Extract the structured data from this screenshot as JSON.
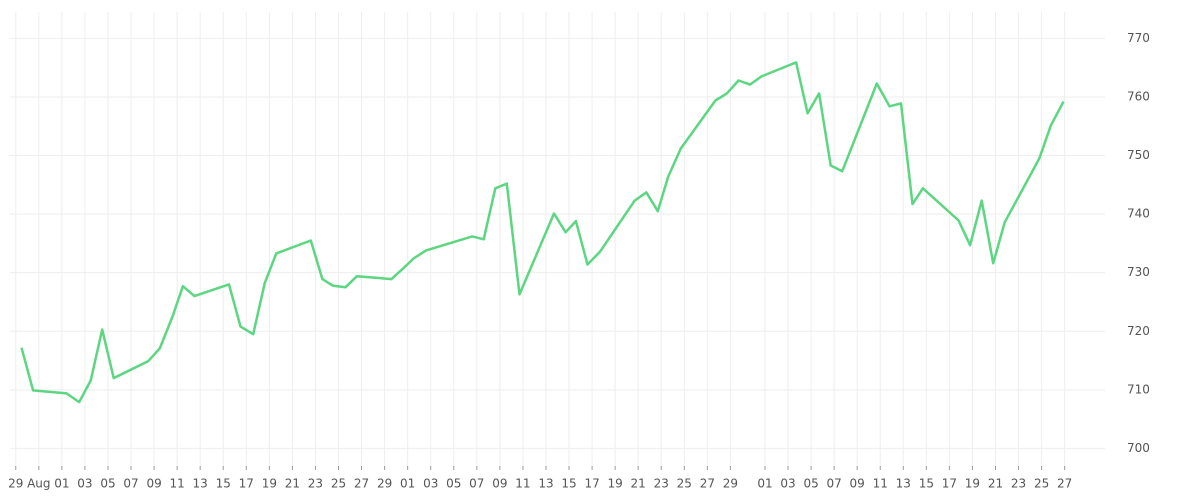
{
  "chart_data": {
    "type": "line",
    "x": [
      0.5,
      1.5,
      4.4,
      5.5,
      6.5,
      7.5,
      8.5,
      11.5,
      12.5,
      13.6,
      14.5,
      15.5,
      18.5,
      19.5,
      20.6,
      21.6,
      22.6,
      25.6,
      26.6,
      27.5,
      28.6,
      29.6,
      32.6,
      33.6,
      34.5,
      35.6,
      39.6,
      40.6,
      41.6,
      42.6,
      43.7,
      46.7,
      47.7,
      48.6,
      49.6,
      50.7,
      53.7,
      54.7,
      55.7,
      56.6,
      57.7,
      60.7,
      61.7,
      62.7,
      63.7,
      64.7,
      67.7,
      68.7,
      69.7,
      70.7,
      71.7,
      74.7,
      75.8,
      76.8,
      77.8,
      78.7,
      81.8,
      82.8,
      83.8,
      84.8,
      85.8,
      88.8,
      89.8,
      90.9
    ],
    "series": [
      {
        "color": "#5cd680",
        "values": [
          717.2,
          709.9,
          709.4,
          707.9,
          711.6,
          720.3,
          712.0,
          714.9,
          717.1,
          722.5,
          727.7,
          726.0,
          728.0,
          720.8,
          719.5,
          728.2,
          733.3,
          735.5,
          728.9,
          727.8,
          727.5,
          729.4,
          728.9,
          730.7,
          732.4,
          733.8,
          736.2,
          735.7,
          744.4,
          745.2,
          726.3,
          740.1,
          736.9,
          738.8,
          731.4,
          733.6,
          742.3,
          743.7,
          740.5,
          746.4,
          751.2,
          759.4,
          760.6,
          762.8,
          762.1,
          763.5,
          765.9,
          757.2,
          760.6,
          748.3,
          747.3,
          762.3,
          758.4,
          758.9,
          741.7,
          744.4,
          738.9,
          734.7,
          742.3,
          731.6,
          738.6,
          749.5,
          755.1,
          759.2
        ]
      }
    ],
    "xlim": [
      -0.5,
      94.5
    ],
    "xticks": [
      {
        "value": 0,
        "label": "29"
      },
      {
        "value": 2,
        "label": "Aug"
      },
      {
        "value": 4,
        "label": "01"
      },
      {
        "value": 6,
        "label": "03"
      },
      {
        "value": 8,
        "label": "05"
      },
      {
        "value": 10,
        "label": "07"
      },
      {
        "value": 12,
        "label": "09"
      },
      {
        "value": 14,
        "label": "11"
      },
      {
        "value": 16,
        "label": "13"
      },
      {
        "value": 18,
        "label": "15"
      },
      {
        "value": 20,
        "label": "17"
      },
      {
        "value": 22,
        "label": "19"
      },
      {
        "value": 24,
        "label": "21"
      },
      {
        "value": 26,
        "label": "23"
      },
      {
        "value": 28,
        "label": "25"
      },
      {
        "value": 30,
        "label": "27"
      },
      {
        "value": 32,
        "label": "29"
      },
      {
        "value": 34,
        "label": "01"
      },
      {
        "value": 36,
        "label": "03"
      },
      {
        "value": 38,
        "label": "05"
      },
      {
        "value": 40,
        "label": "07"
      },
      {
        "value": 42,
        "label": "09"
      },
      {
        "value": 44,
        "label": "11"
      },
      {
        "value": 46,
        "label": "13"
      },
      {
        "value": 48,
        "label": "15"
      },
      {
        "value": 50,
        "label": "17"
      },
      {
        "value": 52,
        "label": "19"
      },
      {
        "value": 54,
        "label": "21"
      },
      {
        "value": 56,
        "label": "23"
      },
      {
        "value": 58,
        "label": "25"
      },
      {
        "value": 60,
        "label": "27"
      },
      {
        "value": 62,
        "label": "29"
      },
      {
        "value": 65,
        "label": "01"
      },
      {
        "value": 67,
        "label": "03"
      },
      {
        "value": 69,
        "label": "05"
      },
      {
        "value": 71,
        "label": "07"
      },
      {
        "value": 73,
        "label": "09"
      },
      {
        "value": 75,
        "label": "11"
      },
      {
        "value": 77,
        "label": "13"
      },
      {
        "value": 79,
        "label": "15"
      },
      {
        "value": 81,
        "label": "17"
      },
      {
        "value": 83,
        "label": "19"
      },
      {
        "value": 85,
        "label": "21"
      },
      {
        "value": 87,
        "label": "23"
      },
      {
        "value": 89,
        "label": "25"
      },
      {
        "value": 91,
        "label": "27"
      }
    ],
    "ylim": [
      697,
      774.5
    ],
    "yticks": [
      700,
      710,
      720,
      730,
      740,
      750,
      760,
      770
    ],
    "grid": true
  }
}
